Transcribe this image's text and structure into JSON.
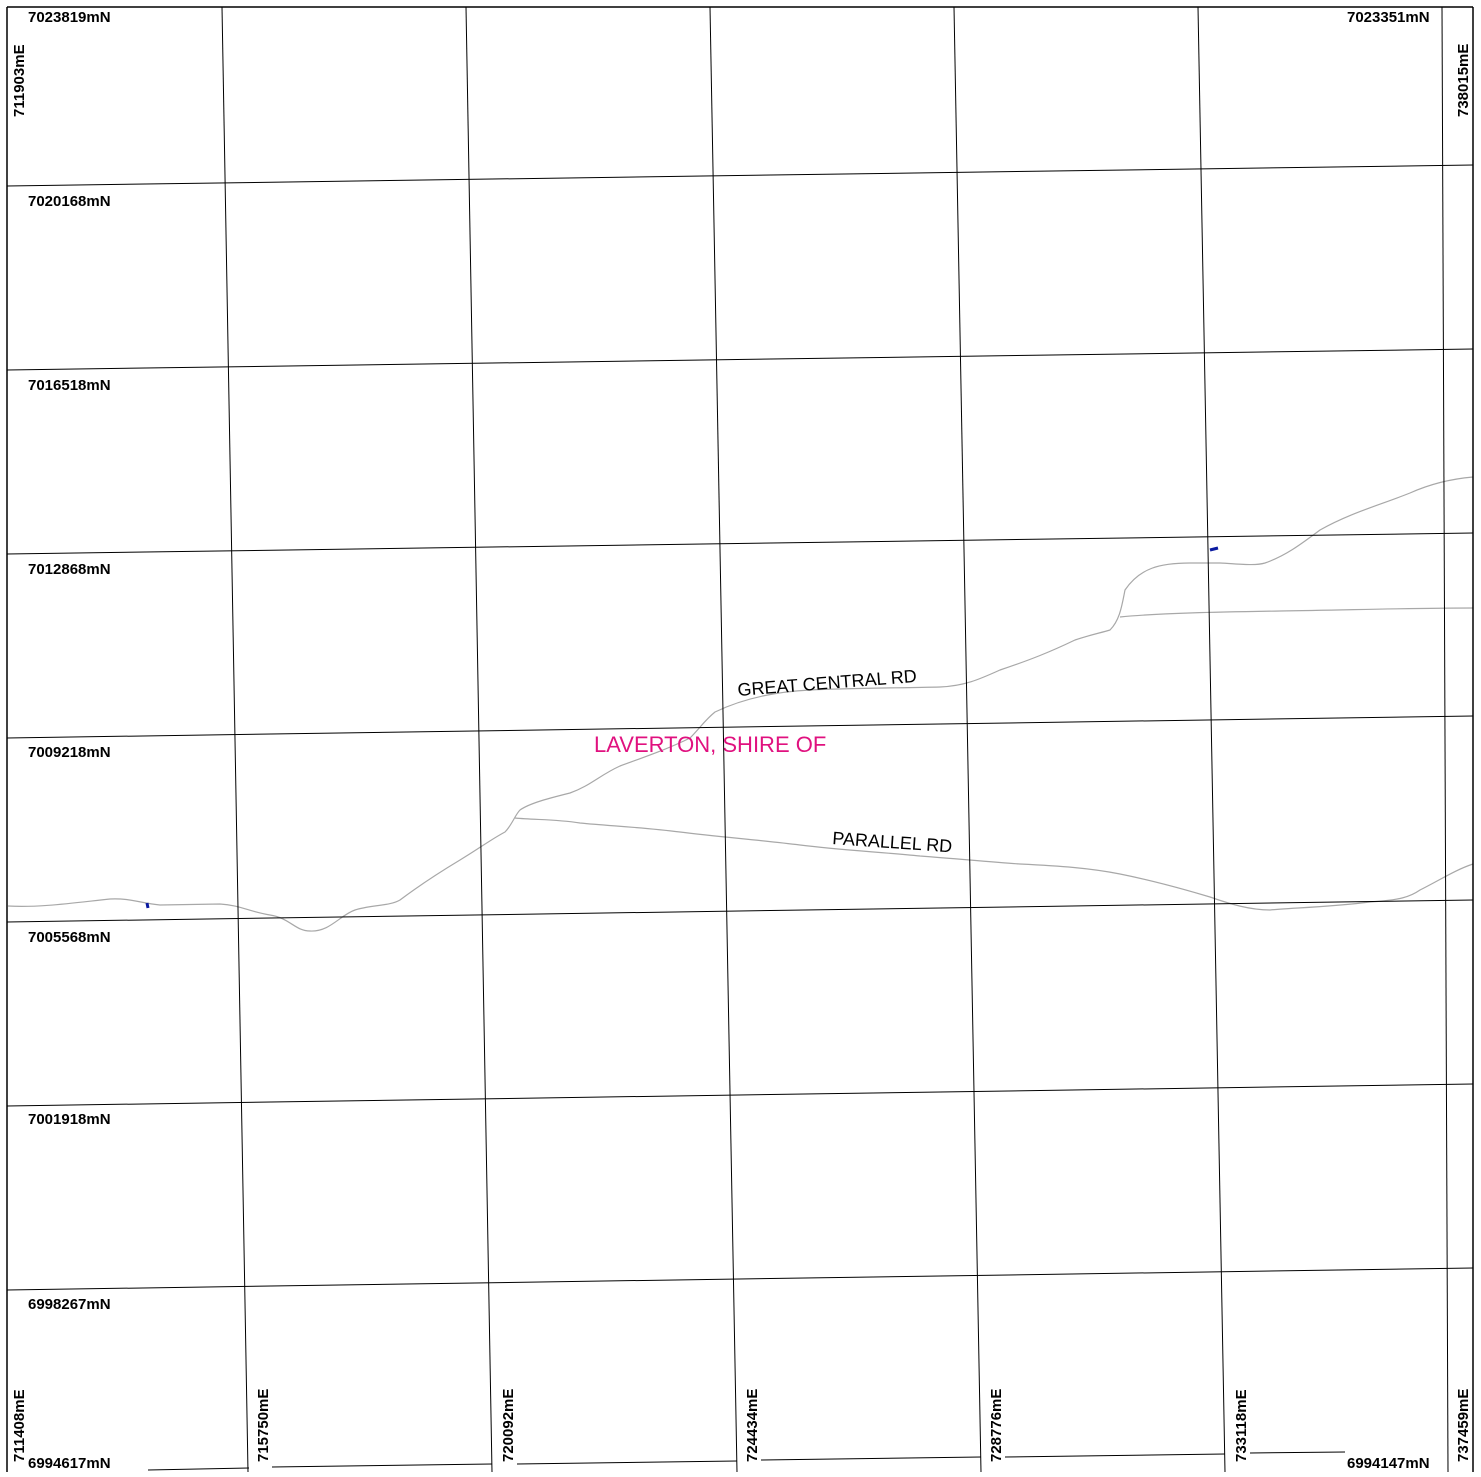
{
  "map": {
    "region_label": "LAVERTON, SHIRE OF",
    "colors": {
      "region_label": "#e0117f",
      "grid": "#000000",
      "road": "#a8a8a8",
      "marker": "#0a1aa0",
      "background": "#ffffff"
    },
    "northings": {
      "top_left": "7023819mN",
      "top_right": "7023351mN",
      "rows": [
        "7020168mN",
        "7016518mN",
        "7012868mN",
        "7009218mN",
        "7005568mN",
        "7001918mN",
        "6998267mN"
      ],
      "bottom_left": "6994617mN",
      "bottom_right": "6994147mN"
    },
    "eastings": {
      "top_left": "711903mE",
      "top_right": "738015mE",
      "bottom": [
        "711408mE",
        "715750mE",
        "720092mE",
        "724434mE",
        "728776mE",
        "733118mE",
        "737459mE"
      ]
    },
    "roads": [
      {
        "name": "GREAT CENTRAL RD"
      },
      {
        "name": "PARALLEL RD"
      }
    ]
  }
}
